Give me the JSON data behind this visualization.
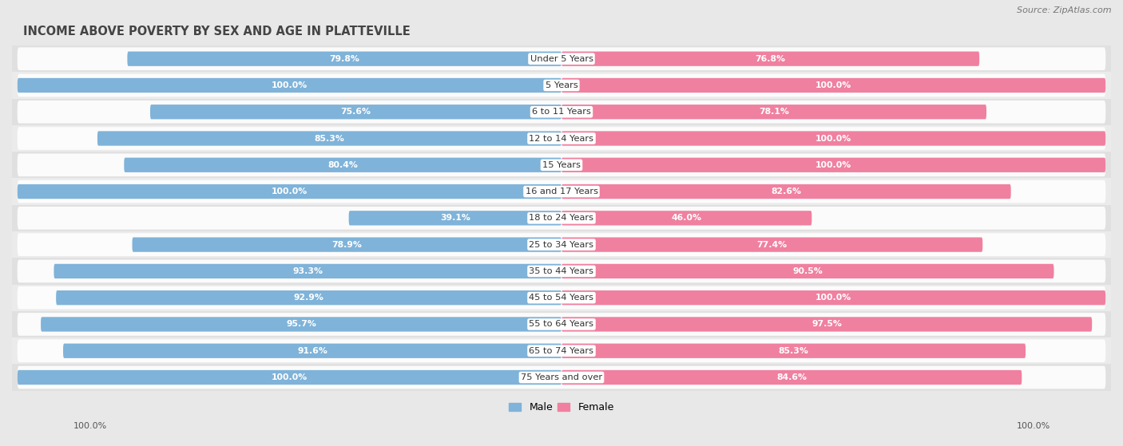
{
  "title": "INCOME ABOVE POVERTY BY SEX AND AGE IN PLATTEVILLE",
  "source": "Source: ZipAtlas.com",
  "categories": [
    "Under 5 Years",
    "5 Years",
    "6 to 11 Years",
    "12 to 14 Years",
    "15 Years",
    "16 and 17 Years",
    "18 to 24 Years",
    "25 to 34 Years",
    "35 to 44 Years",
    "45 to 54 Years",
    "55 to 64 Years",
    "65 to 74 Years",
    "75 Years and over"
  ],
  "male_values": [
    79.8,
    100.0,
    75.6,
    85.3,
    80.4,
    100.0,
    39.1,
    78.9,
    93.3,
    92.9,
    95.7,
    91.6,
    100.0
  ],
  "female_values": [
    76.8,
    100.0,
    78.1,
    100.0,
    100.0,
    82.6,
    46.0,
    77.4,
    90.5,
    100.0,
    97.5,
    85.3,
    84.6
  ],
  "male_color": "#7fb3d9",
  "female_color": "#f080a0",
  "male_label": "Male",
  "female_label": "Female",
  "bar_height": 0.55,
  "max_value": 100.0,
  "legend_male_color": "#7fb3d9",
  "legend_female_color": "#f080a0",
  "bg_color": "#e8e8e8",
  "row_bg_colors": [
    "#e0e0e0",
    "#ebebeb"
  ],
  "white_bar_color": "#ffffff"
}
